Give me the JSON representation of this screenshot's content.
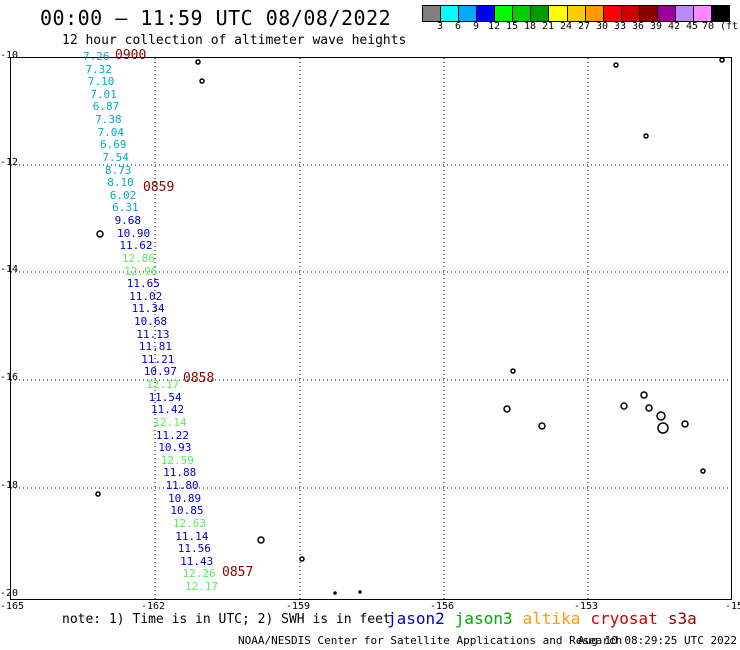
{
  "header": {
    "title": "00:00 — 11:59 UTC 08/08/2022",
    "subtitle": "12 hour collection of altimeter wave heights"
  },
  "legend": {
    "colors": [
      "#808080",
      "#00ffff",
      "#00aaff",
      "#0000ff",
      "#00ff00",
      "#00cc00",
      "#009900",
      "#ffff00",
      "#ffcc00",
      "#ff9900",
      "#ff0000",
      "#cc0000",
      "#880000",
      "#990099",
      "#bb88ff",
      "#ff88ff",
      "#000000"
    ],
    "labels": [
      "3",
      "6",
      "9",
      "12",
      "15",
      "18",
      "21",
      "24",
      "27",
      "30",
      "33",
      "36",
      "39",
      "42",
      "45",
      "70 (ft)"
    ]
  },
  "axes": {
    "lat_labels": [
      "-10",
      "-12",
      "-14",
      "-16",
      "-18",
      "-20"
    ],
    "lon_labels": [
      "-165",
      "-162",
      "-159",
      "-156",
      "-153",
      "-15"
    ]
  },
  "palette": {
    "cyan": "#00aacc",
    "blue": "#0000cc",
    "green": "#55ee55",
    "time": "#8b0000"
  },
  "points": [
    {
      "v": "7.26",
      "c": "cyan"
    },
    {
      "v": "7.32",
      "c": "cyan"
    },
    {
      "v": "7.10",
      "c": "cyan"
    },
    {
      "v": "7.01",
      "c": "cyan"
    },
    {
      "v": "6.87",
      "c": "cyan"
    },
    {
      "v": "7.38",
      "c": "cyan"
    },
    {
      "v": "7.04",
      "c": "cyan"
    },
    {
      "v": "6.69",
      "c": "cyan"
    },
    {
      "v": "7.54",
      "c": "cyan"
    },
    {
      "v": "8.73",
      "c": "cyan"
    },
    {
      "v": "8.10",
      "c": "cyan"
    },
    {
      "v": "6.02",
      "c": "cyan"
    },
    {
      "v": "6.31",
      "c": "cyan"
    },
    {
      "v": "9.68",
      "c": "blue"
    },
    {
      "v": "10.90",
      "c": "blue"
    },
    {
      "v": "11.62",
      "c": "blue"
    },
    {
      "v": "12.86",
      "c": "green"
    },
    {
      "v": "12.96",
      "c": "green"
    },
    {
      "v": "11.65",
      "c": "blue"
    },
    {
      "v": "11.02",
      "c": "blue"
    },
    {
      "v": "11.34",
      "c": "blue"
    },
    {
      "v": "10.68",
      "c": "blue"
    },
    {
      "v": "11.13",
      "c": "blue"
    },
    {
      "v": "11.81",
      "c": "blue"
    },
    {
      "v": "11.21",
      "c": "blue"
    },
    {
      "v": "10.97",
      "c": "blue"
    },
    {
      "v": "12.17",
      "c": "green"
    },
    {
      "v": "11.54",
      "c": "blue"
    },
    {
      "v": "11.42",
      "c": "blue"
    },
    {
      "v": "12.14",
      "c": "green"
    },
    {
      "v": "11.22",
      "c": "blue"
    },
    {
      "v": "10.93",
      "c": "blue"
    },
    {
      "v": "12.59",
      "c": "green"
    },
    {
      "v": "11.88",
      "c": "blue"
    },
    {
      "v": "11.80",
      "c": "blue"
    },
    {
      "v": "10.89",
      "c": "blue"
    },
    {
      "v": "10.85",
      "c": "blue"
    },
    {
      "v": "12.63",
      "c": "green"
    },
    {
      "v": "11.14",
      "c": "blue"
    },
    {
      "v": "11.56",
      "c": "blue"
    },
    {
      "v": "11.43",
      "c": "blue"
    },
    {
      "v": "12.26",
      "c": "green"
    },
    {
      "v": "12.17",
      "c": "green"
    }
  ],
  "times": [
    "0900",
    "0859",
    "0858",
    "0857"
  ],
  "note": "note: 1) Time is in UTC; 2) SWH is in feet",
  "satellites": [
    {
      "name": "jason2",
      "color": "#0000cc"
    },
    {
      "name": "jason3",
      "color": "#00aa00"
    },
    {
      "name": "altika",
      "color": "#ff9900"
    },
    {
      "name": "cryosat",
      "color": "#cc0000"
    },
    {
      "name": "s3a",
      "color": "#880000"
    }
  ],
  "footer": {
    "center": "NOAA/NESDIS Center for Satellite Applications and Research",
    "right": "Aug 10 08:29:25 UTC 2022"
  }
}
